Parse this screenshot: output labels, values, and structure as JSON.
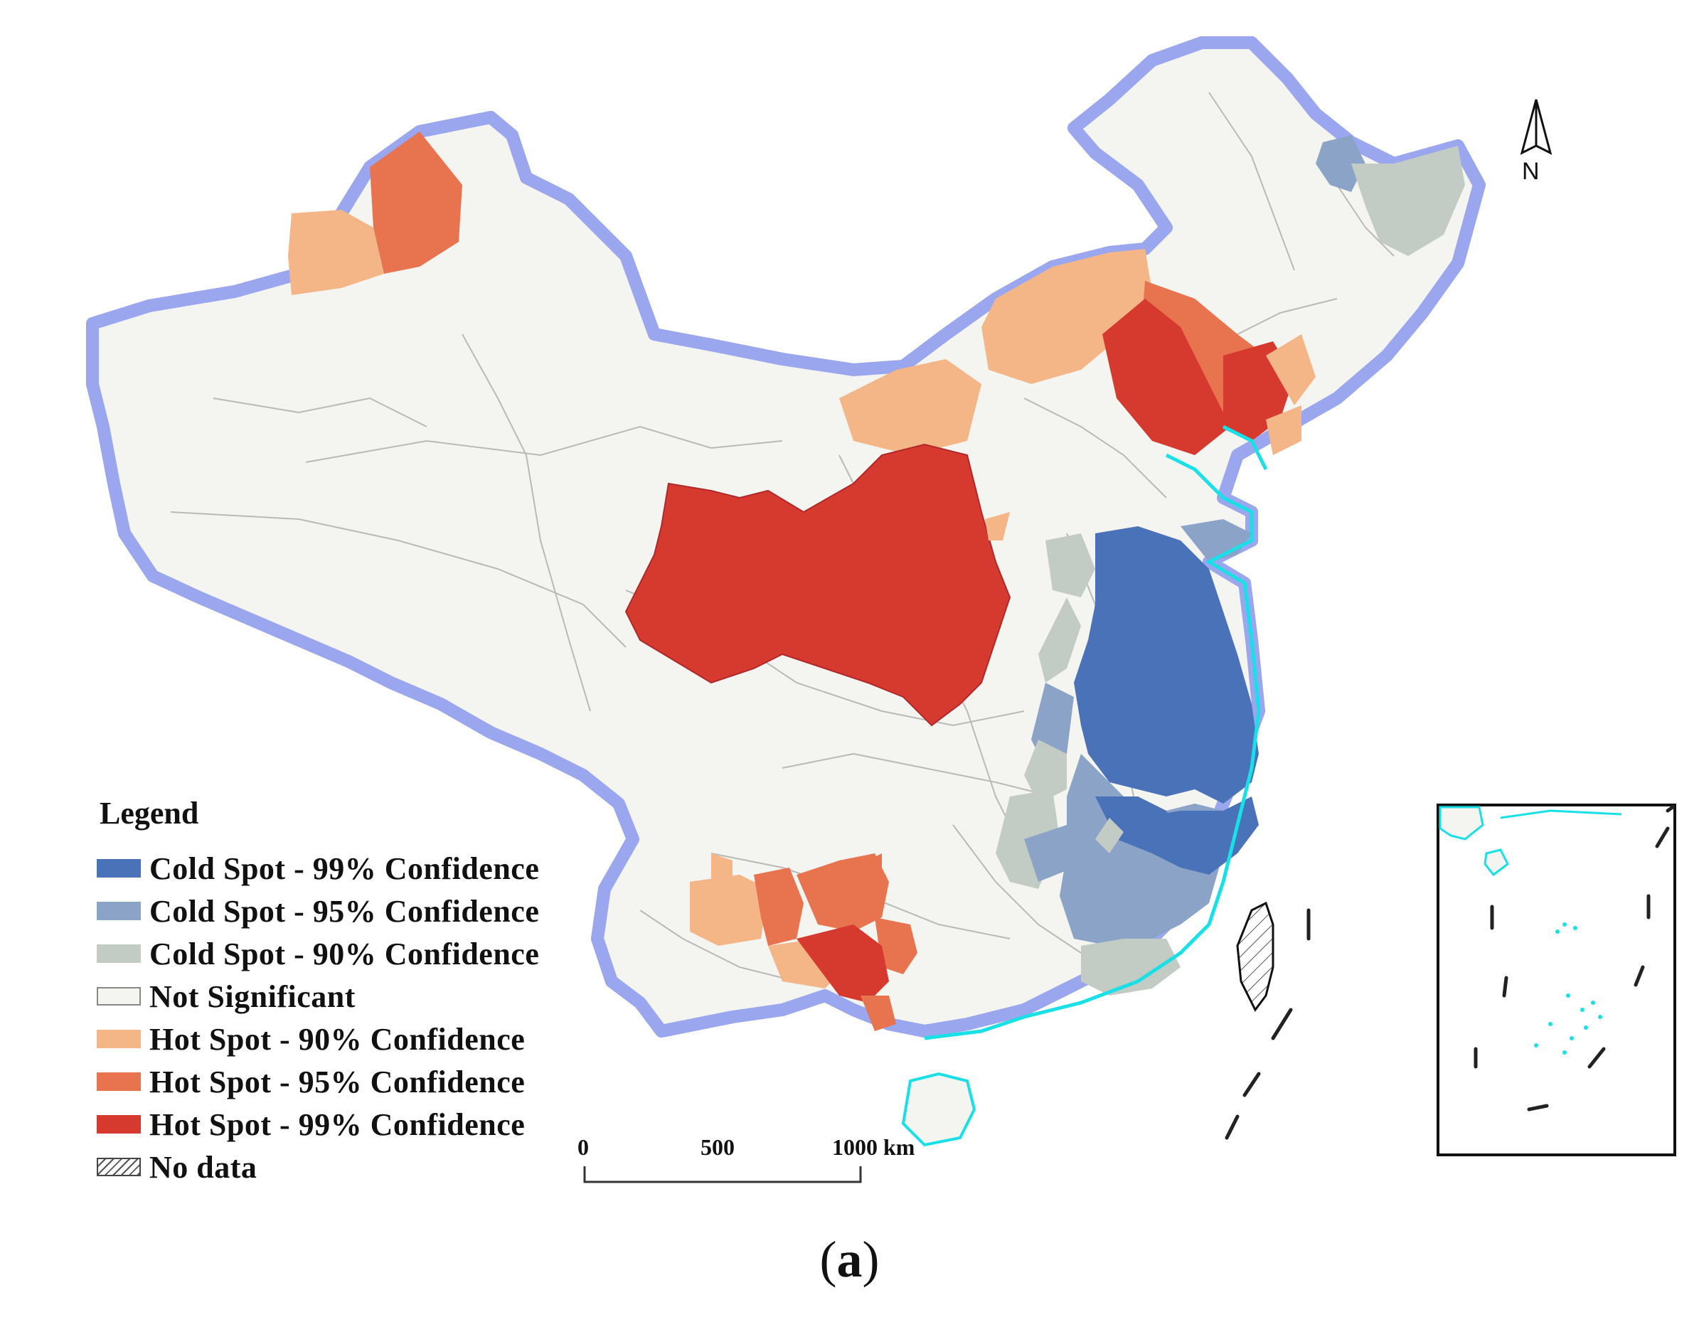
{
  "legend": {
    "title": "Legend",
    "items": [
      {
        "label": "Cold Spot - 99% Confidence",
        "color": "#4a72b8"
      },
      {
        "label": "Cold Spot - 95% Confidence",
        "color": "#8aa3c6"
      },
      {
        "label": "Cold Spot - 90% Confidence",
        "color": "#c3ccc4"
      },
      {
        "label": "Not Significant",
        "color": "#f4f4f0"
      },
      {
        "label": "Hot Spot - 90% Confidence",
        "color": "#f4b587"
      },
      {
        "label": "Hot Spot - 95% Confidence",
        "color": "#e8744f"
      },
      {
        "label": "Hot Spot - 99% Confidence",
        "color": "#d63a2f"
      },
      {
        "label": "No data",
        "color": "hatched"
      }
    ]
  },
  "scale_bar": {
    "labels": [
      "0",
      "500",
      "1000 km"
    ]
  },
  "north_arrow": {
    "label": "N"
  },
  "caption": {
    "open": "(",
    "letter": "a",
    "close": ")"
  },
  "colors": {
    "coastline": "#19e0e6",
    "border_glow": "#9aa6ee",
    "border": "#111111",
    "water": "#ffffff"
  }
}
